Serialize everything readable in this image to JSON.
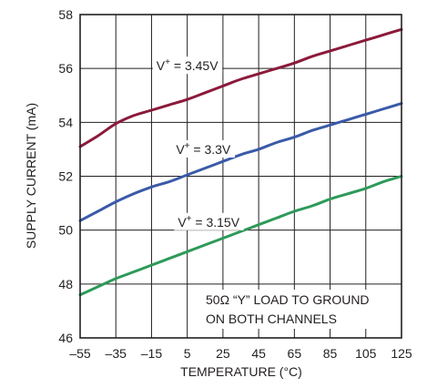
{
  "chart_data": {
    "type": "line",
    "title": "",
    "xlabel": "TEMPERATURE (°C)",
    "ylabel": "SUPPLY CURRENT (mA)",
    "xlim": [
      -55,
      125
    ],
    "ylim": [
      46,
      58
    ],
    "xticks": [
      -55,
      -35,
      -15,
      5,
      25,
      45,
      65,
      85,
      105,
      125
    ],
    "yticks": [
      46,
      48,
      50,
      52,
      54,
      56,
      58
    ],
    "xtick_labels": [
      "–55",
      "–35",
      "–15",
      "5",
      "25",
      "45",
      "65",
      "85",
      "105",
      "125"
    ],
    "ytick_labels": [
      "46",
      "48",
      "50",
      "52",
      "54",
      "56",
      "58"
    ],
    "grid": true,
    "annotation": [
      "50Ω “Y” LOAD TO GROUND",
      "ON BOTH CHANNELS"
    ],
    "series": [
      {
        "name": "V+ = 3.45V",
        "label_prefix": "V",
        "label_sup": "+",
        "label_suffix": " = 3.45V",
        "color": "#8b1a3a",
        "label_at": [
          5,
          56.1
        ],
        "x": [
          -55,
          -45,
          -35,
          -25,
          -15,
          -5,
          5,
          15,
          25,
          35,
          45,
          55,
          65,
          75,
          85,
          95,
          105,
          115,
          125
        ],
        "y": [
          53.1,
          53.5,
          53.95,
          54.25,
          54.45,
          54.65,
          54.85,
          55.1,
          55.35,
          55.6,
          55.8,
          56.0,
          56.2,
          56.45,
          56.65,
          56.85,
          57.05,
          57.25,
          57.45
        ]
      },
      {
        "name": "V+ = 3.3V",
        "label_prefix": "V",
        "label_sup": "+",
        "label_suffix": " = 3.3V",
        "color": "#3a5aa8",
        "label_at": [
          14,
          53.0
        ],
        "x": [
          -55,
          -45,
          -35,
          -25,
          -15,
          -5,
          5,
          15,
          25,
          35,
          45,
          55,
          65,
          75,
          85,
          95,
          105,
          115,
          125
        ],
        "y": [
          50.35,
          50.7,
          51.05,
          51.35,
          51.6,
          51.8,
          52.05,
          52.3,
          52.55,
          52.8,
          53.0,
          53.25,
          53.45,
          53.7,
          53.9,
          54.1,
          54.3,
          54.5,
          54.7
        ]
      },
      {
        "name": "V+ = 3.15V",
        "label_prefix": "V",
        "label_sup": "+",
        "label_suffix": " = 3.15V",
        "color": "#2e9a5a",
        "label_at": [
          17,
          50.3
        ],
        "x": [
          -55,
          -45,
          -35,
          -25,
          -15,
          -5,
          5,
          15,
          25,
          35,
          45,
          55,
          65,
          75,
          85,
          95,
          105,
          115,
          125
        ],
        "y": [
          47.6,
          47.9,
          48.2,
          48.45,
          48.7,
          48.95,
          49.2,
          49.45,
          49.7,
          49.95,
          50.2,
          50.45,
          50.7,
          50.9,
          51.15,
          51.35,
          51.55,
          51.8,
          52.0
        ]
      }
    ]
  }
}
